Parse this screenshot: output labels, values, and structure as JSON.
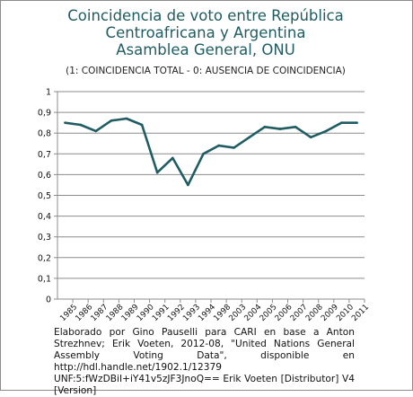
{
  "chart_data": {
    "type": "line",
    "title": "Coincidencia de voto entre República\nCentroafricana y Argentina\nAsamblea General, ONU",
    "subtitle": "(1: COINCIDENCIA TOTAL  -  0: AUSENCIA DE COINCIDENCIA)",
    "ylim": [
      0,
      1
    ],
    "y_ticks": [
      "0",
      "0,1",
      "0,2",
      "0,3",
      "0,4",
      "0,5",
      "0,6",
      "0,7",
      "0,8",
      "0,9",
      "1"
    ],
    "grid": "horizontal",
    "categories": [
      "1985",
      "1986",
      "1987",
      "1988",
      "1989",
      "1990",
      "1991",
      "1992",
      "1993",
      "1994",
      "1998",
      "2003",
      "2004",
      "2005",
      "2006",
      "2007",
      "2008",
      "2009",
      "2010",
      "2011"
    ],
    "values": [
      0.85,
      0.84,
      0.81,
      0.86,
      0.87,
      0.84,
      0.61,
      0.68,
      0.55,
      0.7,
      0.74,
      0.73,
      0.78,
      0.83,
      0.82,
      0.83,
      0.78,
      0.81,
      0.85,
      0.85
    ],
    "line_color": "#1f5c63",
    "source": "Elaborado por Gino Pauselli para CARI en base a Anton Strezhnev; Erik Voeten, 2012-08, \"United Nations General Assembly Voting Data\", disponible en http://hdl.handle.net/1902.1/12379 UNF:5:fWzDBiI+iY41v5zJF3JnoQ== Erik Voeten [Distributor] V4 [Version]"
  }
}
